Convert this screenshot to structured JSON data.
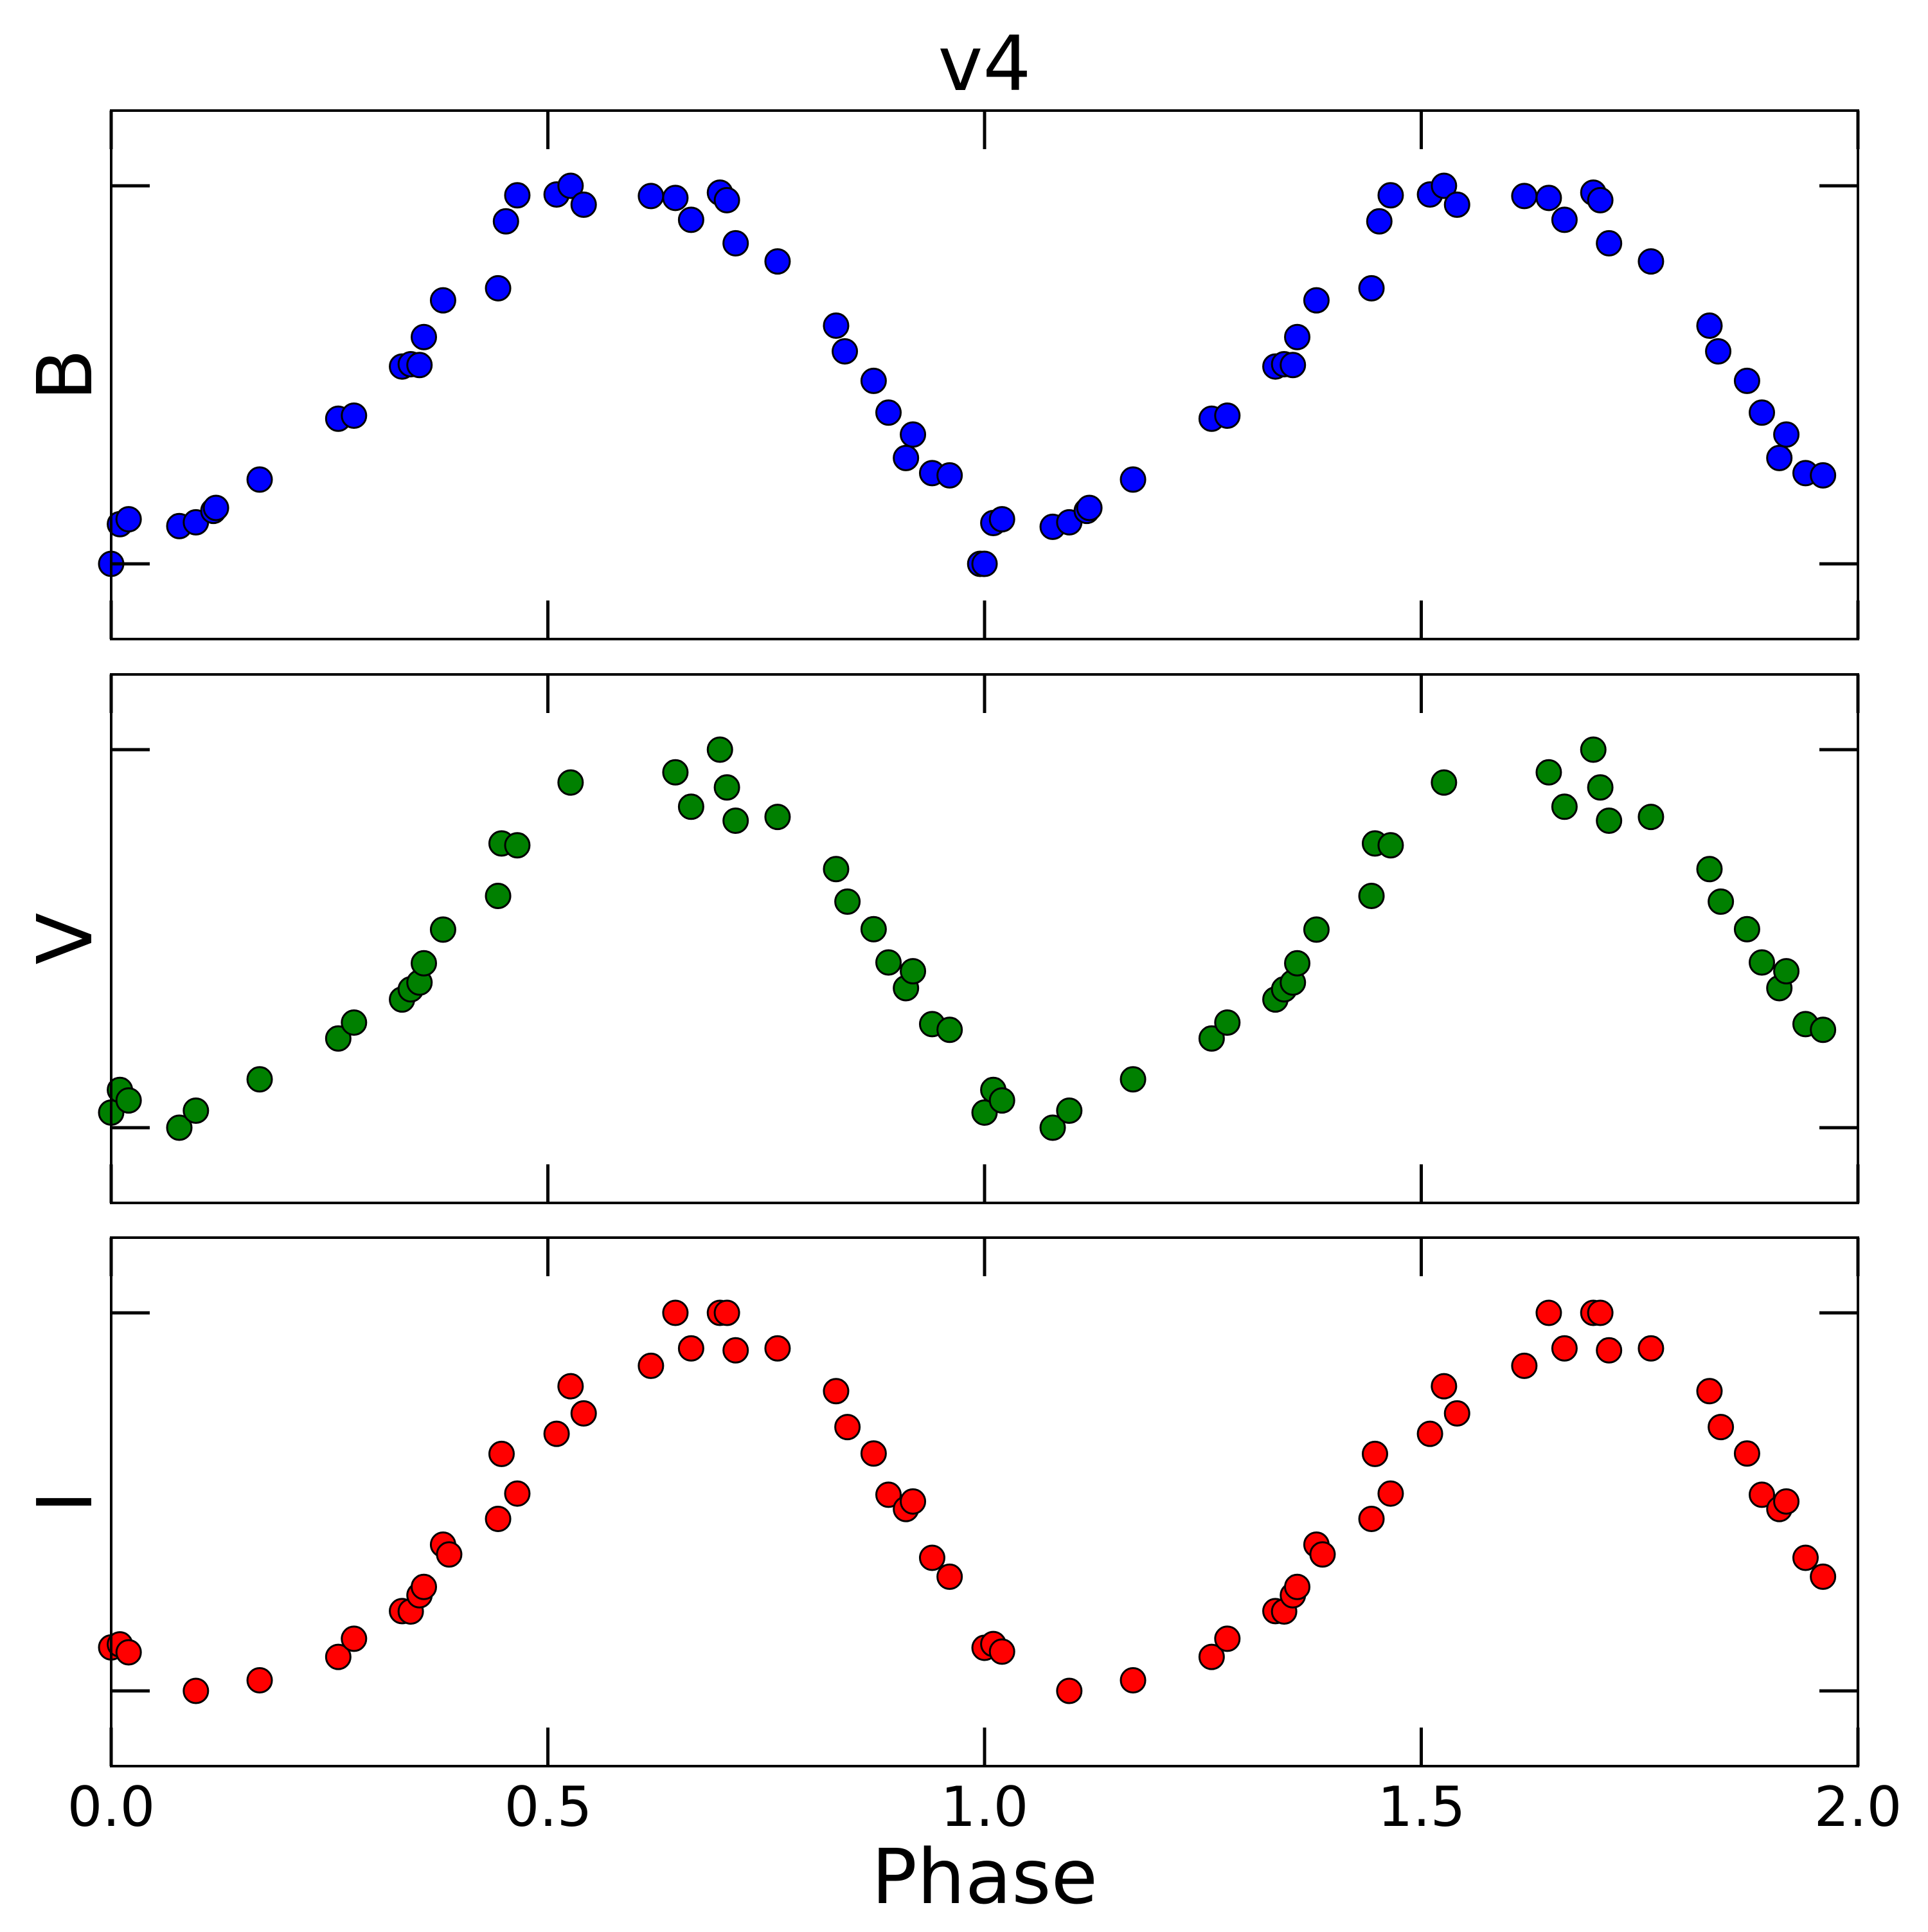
{
  "title": "v4",
  "xlabel": "Phase",
  "colors": {
    "axis": "#000000",
    "marker_edge": "#000000"
  },
  "chart_data": [
    {
      "type": "scatter",
      "panel": "top",
      "ylabel": "B",
      "xlim": [
        0.0,
        2.0
      ],
      "ylim": [
        0.0,
        1.0
      ],
      "y_tick_labels_shown": false,
      "x_tick_labels_shown": false,
      "marker_color": "#0000ff",
      "series": [
        {
          "x": [
            0.0,
            0.01,
            0.02,
            0.078,
            0.097,
            0.117,
            0.12,
            0.17,
            0.26,
            0.278,
            0.333,
            0.343,
            0.353,
            0.358,
            0.38,
            0.443,
            0.452,
            0.465,
            0.51,
            0.526,
            0.541,
            0.618,
            0.646,
            0.664,
            0.697,
            0.705,
            0.715,
            0.763,
            0.83,
            0.84,
            0.873,
            0.89,
            0.91,
            0.918,
            0.94,
            0.96,
            0.995,
            1.0,
            1.01,
            1.02,
            1.078,
            1.097,
            1.117,
            1.12,
            1.17,
            1.26,
            1.278,
            1.333,
            1.343,
            1.353,
            1.358,
            1.38,
            1.443,
            1.452,
            1.465,
            1.51,
            1.526,
            1.541,
            1.618,
            1.646,
            1.664,
            1.697,
            1.705,
            1.715,
            1.763,
            1.83,
            1.84,
            1.873,
            1.89,
            1.91,
            1.918,
            1.94,
            1.96
          ],
          "y": [
            0.0,
            0.105,
            0.118,
            0.1,
            0.11,
            0.14,
            0.148,
            0.223,
            0.384,
            0.392,
            0.522,
            0.528,
            0.526,
            0.6,
            0.697,
            0.729,
            0.906,
            0.975,
            0.977,
            1.0,
            0.95,
            0.973,
            0.968,
            0.91,
            0.982,
            0.962,
            0.848,
            0.8,
            0.63,
            0.562,
            0.484,
            0.4,
            0.28,
            0.342,
            0.24,
            0.234,
            0.0,
            0.0,
            0.108,
            0.118,
            0.098,
            0.11,
            0.14,
            0.148,
            0.223,
            0.384,
            0.392,
            0.522,
            0.528,
            0.526,
            0.6,
            0.697,
            0.729,
            0.906,
            0.975,
            0.977,
            1.0,
            0.95,
            0.973,
            0.968,
            0.91,
            0.982,
            0.962,
            0.848,
            0.8,
            0.63,
            0.562,
            0.484,
            0.4,
            0.28,
            0.342,
            0.24,
            0.234
          ]
        }
      ]
    },
    {
      "type": "scatter",
      "panel": "middle",
      "ylabel": "V",
      "xlim": [
        0.0,
        2.0
      ],
      "ylim": [
        0.0,
        1.0
      ],
      "y_tick_labels_shown": false,
      "x_tick_labels_shown": false,
      "marker_color": "#008000",
      "series": [
        {
          "x": [
            0.0,
            0.01,
            0.02,
            0.078,
            0.097,
            0.17,
            0.26,
            0.278,
            0.333,
            0.343,
            0.353,
            0.358,
            0.38,
            0.443,
            0.447,
            0.465,
            0.526,
            0.646,
            0.664,
            0.697,
            0.705,
            0.715,
            0.763,
            0.83,
            0.843,
            0.873,
            0.89,
            0.91,
            0.918,
            0.94,
            0.96,
            1.0,
            1.01,
            1.02,
            1.078,
            1.097,
            1.17,
            1.26,
            1.278,
            1.333,
            1.343,
            1.353,
            1.358,
            1.38,
            1.443,
            1.447,
            1.465,
            1.526,
            1.646,
            1.664,
            1.697,
            1.705,
            1.715,
            1.763,
            1.83,
            1.843,
            1.873,
            1.89,
            1.91,
            1.918,
            1.94,
            1.96
          ],
          "y": [
            0.04,
            0.1,
            0.072,
            0.0,
            0.045,
            0.128,
            0.236,
            0.278,
            0.339,
            0.366,
            0.384,
            0.435,
            0.524,
            0.613,
            0.752,
            0.747,
            0.913,
            0.94,
            0.849,
            1.0,
            0.9,
            0.812,
            0.822,
            0.684,
            0.598,
            0.525,
            0.437,
            0.369,
            0.414,
            0.274,
            0.259,
            0.04,
            0.1,
            0.072,
            0.0,
            0.045,
            0.128,
            0.236,
            0.278,
            0.339,
            0.366,
            0.384,
            0.435,
            0.524,
            0.613,
            0.752,
            0.747,
            0.913,
            0.94,
            0.849,
            1.0,
            0.9,
            0.812,
            0.822,
            0.684,
            0.598,
            0.525,
            0.437,
            0.369,
            0.414,
            0.274,
            0.259
          ]
        }
      ]
    },
    {
      "type": "scatter",
      "panel": "bottom",
      "ylabel": "I",
      "xlim": [
        0.0,
        2.0
      ],
      "ylim": [
        0.0,
        1.0
      ],
      "y_tick_labels_shown": false,
      "x_tick_labels": [
        "0.0",
        "0.5",
        "1.0",
        "1.5",
        "2.0"
      ],
      "x_ticks": [
        0.0,
        0.5,
        1.0,
        1.5,
        2.0
      ],
      "marker_color": "#ff0000",
      "series": [
        {
          "x": [
            0.0,
            0.01,
            0.02,
            0.097,
            0.17,
            0.26,
            0.278,
            0.333,
            0.343,
            0.353,
            0.358,
            0.38,
            0.387,
            0.443,
            0.447,
            0.465,
            0.51,
            0.526,
            0.541,
            0.618,
            0.646,
            0.664,
            0.697,
            0.705,
            0.715,
            0.763,
            0.83,
            0.843,
            0.873,
            0.89,
            0.91,
            0.918,
            0.94,
            0.96,
            1.0,
            1.01,
            1.02,
            1.097,
            1.17,
            1.26,
            1.278,
            1.333,
            1.343,
            1.353,
            1.358,
            1.38,
            1.387,
            1.443,
            1.447,
            1.465,
            1.51,
            1.526,
            1.541,
            1.618,
            1.646,
            1.664,
            1.697,
            1.705,
            1.715,
            1.763,
            1.83,
            1.843,
            1.873,
            1.89,
            1.91,
            1.918,
            1.94,
            1.96
          ],
          "y": [
            0.115,
            0.123,
            0.102,
            0.0,
            0.028,
            0.09,
            0.138,
            0.211,
            0.21,
            0.253,
            0.275,
            0.387,
            0.361,
            0.455,
            0.627,
            0.522,
            0.68,
            0.806,
            0.734,
            0.86,
            1.0,
            0.906,
            1.0,
            1.0,
            0.901,
            0.906,
            0.793,
            0.698,
            0.628,
            0.519,
            0.481,
            0.501,
            0.352,
            0.302,
            0.114,
            0.124,
            0.104,
            0.0,
            0.028,
            0.09,
            0.138,
            0.211,
            0.21,
            0.253,
            0.275,
            0.387,
            0.361,
            0.455,
            0.627,
            0.522,
            0.68,
            0.806,
            0.734,
            0.86,
            1.0,
            0.906,
            1.0,
            1.0,
            0.901,
            0.906,
            0.793,
            0.698,
            0.628,
            0.519,
            0.481,
            0.501,
            0.352,
            0.302
          ]
        }
      ]
    }
  ]
}
